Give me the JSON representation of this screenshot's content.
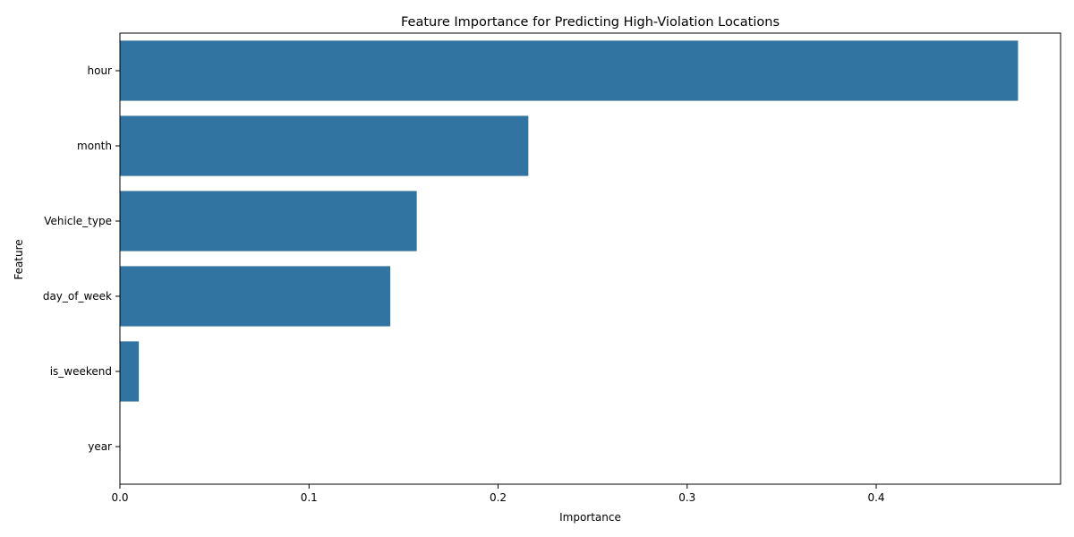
{
  "chart_data": {
    "type": "bar",
    "orientation": "horizontal",
    "title": "Feature Importance for Predicting High-Violation Locations",
    "xlabel": "Importance",
    "ylabel": "Feature",
    "categories": [
      "hour",
      "month",
      "Vehicle_type",
      "day_of_week",
      "is_weekend",
      "year"
    ],
    "values": [
      0.475,
      0.216,
      0.157,
      0.143,
      0.01,
      0.0
    ],
    "xlim": [
      0,
      0.4975
    ],
    "xticks": [
      0.0,
      0.1,
      0.2,
      0.3,
      0.4
    ],
    "xtick_labels": [
      "0.0",
      "0.1",
      "0.2",
      "0.3",
      "0.4"
    ],
    "grid": false,
    "legend": "none",
    "bar_color": "#3274a1"
  }
}
